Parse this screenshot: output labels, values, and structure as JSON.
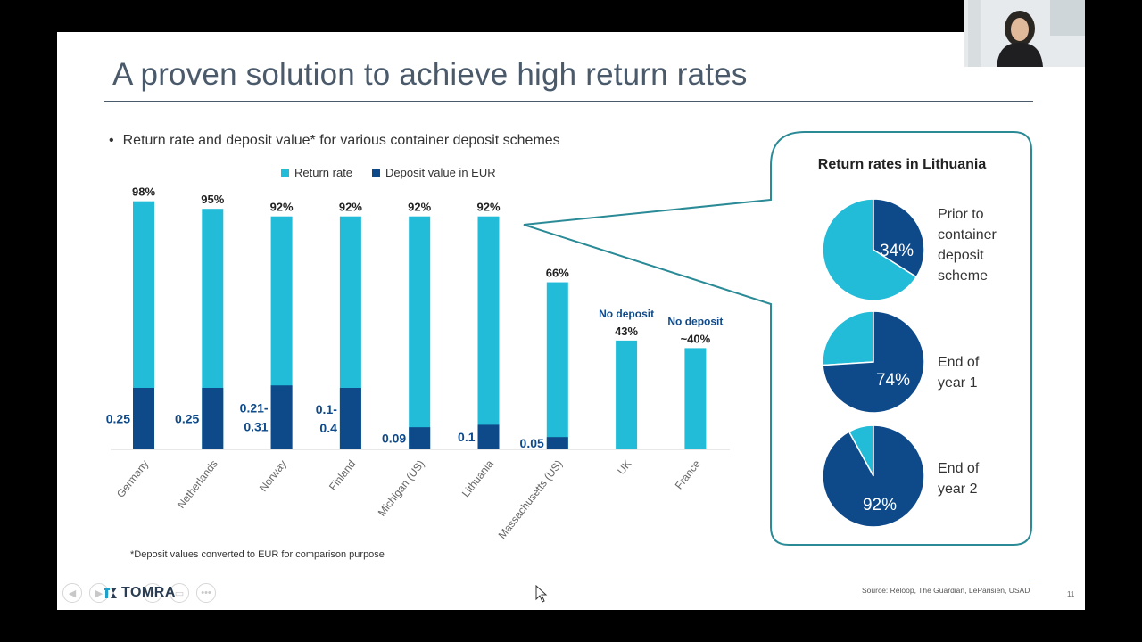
{
  "slide": {
    "title": "A proven solution to achieve high return rates",
    "bullet": "Return rate and deposit value* for various container deposit schemes",
    "footnote": "*Deposit values converted to EUR for comparison purpose",
    "source": "Source: Reloop, The Guardian, LeParisien, USAD",
    "page_number": "11",
    "logo_text": "TOMRA"
  },
  "colors": {
    "return_rate": "#22bcd8",
    "deposit": "#0e4a8a",
    "callout_border": "#2a8a96",
    "title": "#4a5a6b"
  },
  "chart_data": [
    {
      "type": "bar",
      "title": "",
      "legend": [
        "Return rate",
        "Deposit value in EUR"
      ],
      "legend_position": "top",
      "categories": [
        "Germany",
        "Netherlands",
        "Norway",
        "Finland",
        "Michigan (US)",
        "Lithuania",
        "Massachusetts (US)",
        "UK",
        "France"
      ],
      "series": [
        {
          "name": "Return rate",
          "values": [
            98,
            95,
            92,
            92,
            92,
            92,
            66,
            43,
            40
          ]
        },
        {
          "name": "Deposit value in EUR",
          "values": [
            0.25,
            0.25,
            0.26,
            0.25,
            0.09,
            0.1,
            0.05,
            0,
            0
          ]
        }
      ],
      "return_labels": [
        "98%",
        "95%",
        "92%",
        "92%",
        "92%",
        "92%",
        "66%",
        "43%",
        "~40%"
      ],
      "deposit_labels": [
        "0.25",
        "0.25",
        "0.21-\n0.31",
        "0.1-\n0.4",
        "0.09",
        "0.1",
        "0.05",
        "",
        ""
      ],
      "annotations": [
        "No deposit",
        "No deposit"
      ],
      "ylim": [
        0,
        100
      ],
      "grid": false
    },
    {
      "type": "pie",
      "title": "Return rates in Lithuania",
      "pies": [
        {
          "label": "Prior to container deposit scheme",
          "value": 34,
          "value_label": "34%"
        },
        {
          "label": "End of year 1",
          "value": 74,
          "value_label": "74%"
        },
        {
          "label": "End of year 2",
          "value": 92,
          "value_label": "92%"
        }
      ]
    }
  ],
  "player": {
    "controls": [
      "prev-icon",
      "next-icon",
      "search-icon",
      "slides-icon",
      "more-icon"
    ]
  }
}
